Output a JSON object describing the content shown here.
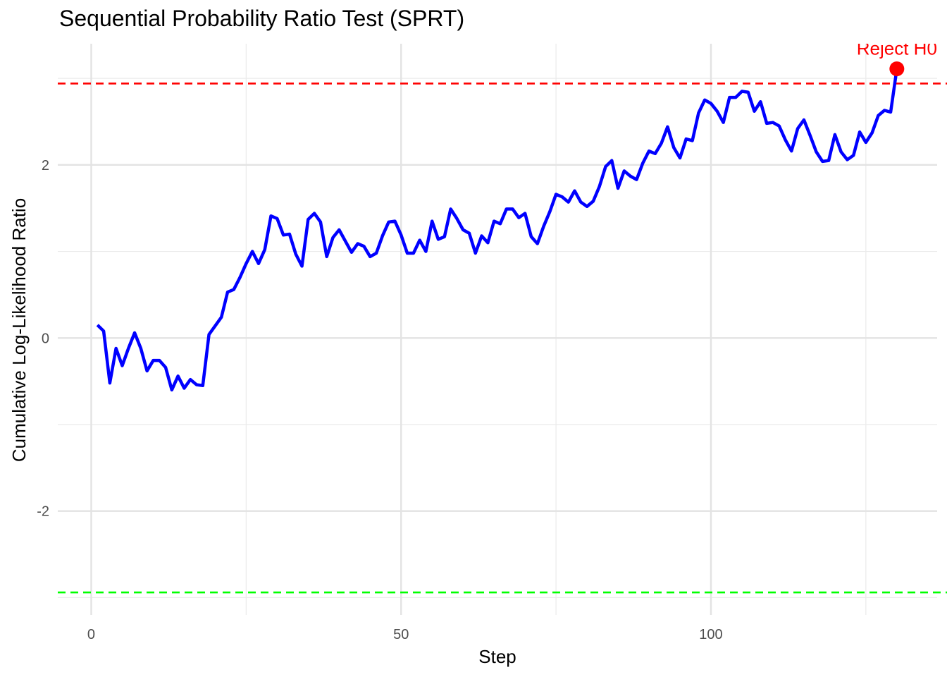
{
  "chart_data": {
    "type": "line",
    "title": "Sequential Probability Ratio Test (SPRT)",
    "xlabel": "Step",
    "ylabel": "Cumulative Log-Likelihood Ratio",
    "xlim": [
      -5.4,
      136.5
    ],
    "ylim": [
      -3.2,
      3.4
    ],
    "x_ticks": [
      0,
      50,
      100
    ],
    "x_tick_labels": [
      "0",
      "50",
      "100"
    ],
    "y_ticks": [
      -2,
      0,
      2
    ],
    "y_tick_labels": [
      "-2",
      "0",
      "2"
    ],
    "grid": true,
    "series": [
      {
        "color": "#0000ff",
        "x": [
          1,
          2,
          3,
          4,
          5,
          6,
          7,
          8,
          9,
          10,
          11,
          12,
          13,
          14,
          15,
          16,
          17,
          18,
          19,
          20,
          21,
          22,
          23,
          24,
          25,
          26,
          27,
          28,
          29,
          30,
          31,
          32,
          33,
          34,
          35,
          36,
          37,
          38,
          39,
          40,
          41,
          42,
          43,
          44,
          45,
          46,
          47,
          48,
          49,
          50,
          51,
          52,
          53,
          54,
          55,
          56,
          57,
          58,
          59,
          60,
          61,
          62,
          63,
          64,
          65,
          66,
          67,
          68,
          69,
          70,
          71,
          72,
          73,
          74,
          75,
          76,
          77,
          78,
          79,
          80,
          81,
          82,
          83,
          84,
          85,
          86,
          87,
          88,
          89,
          90,
          91,
          92,
          93,
          94,
          95,
          96,
          97,
          98,
          99,
          100,
          101,
          102,
          103,
          104,
          105,
          106,
          107,
          108,
          109,
          110,
          111,
          112,
          113,
          114,
          115,
          116,
          117,
          118,
          119,
          120,
          121,
          122,
          123,
          124,
          125,
          126,
          127,
          128,
          129,
          130
        ],
        "y": [
          0.15,
          0.08,
          -0.52,
          -0.12,
          -0.32,
          -0.12,
          0.06,
          -0.12,
          -0.38,
          -0.26,
          -0.26,
          -0.34,
          -0.6,
          -0.44,
          -0.58,
          -0.48,
          -0.54,
          -0.55,
          0.04,
          0.14,
          0.24,
          0.53,
          0.56,
          0.7,
          0.86,
          1.0,
          0.86,
          1.02,
          1.41,
          1.38,
          1.19,
          1.2,
          0.97,
          0.83,
          1.37,
          1.44,
          1.34,
          0.94,
          1.16,
          1.25,
          1.12,
          0.99,
          1.09,
          1.06,
          0.94,
          0.98,
          1.18,
          1.34,
          1.35,
          1.19,
          0.98,
          0.98,
          1.13,
          1.0,
          1.35,
          1.14,
          1.17,
          1.49,
          1.38,
          1.25,
          1.21,
          0.98,
          1.18,
          1.1,
          1.35,
          1.32,
          1.49,
          1.49,
          1.39,
          1.44,
          1.17,
          1.09,
          1.29,
          1.46,
          1.66,
          1.63,
          1.57,
          1.7,
          1.57,
          1.52,
          1.58,
          1.75,
          1.98,
          2.05,
          1.73,
          1.93,
          1.87,
          1.83,
          2.02,
          2.16,
          2.13,
          2.25,
          2.44,
          2.2,
          2.08,
          2.3,
          2.28,
          2.6,
          2.75,
          2.71,
          2.62,
          2.49,
          2.78,
          2.78,
          2.85,
          2.84,
          2.62,
          2.73,
          2.48,
          2.49,
          2.45,
          2.29,
          2.16,
          2.42,
          2.52,
          2.34,
          2.15,
          2.04,
          2.05,
          2.35,
          2.15,
          2.06,
          2.11,
          2.38,
          2.26,
          2.37,
          2.57,
          2.63,
          2.61,
          3.11
        ]
      }
    ],
    "upper_threshold": {
      "value": 2.94,
      "color": "#ff0000"
    },
    "lower_threshold": {
      "value": -2.94,
      "color": "#00ff00"
    },
    "annotation": {
      "text": "Reject H0",
      "x": 130,
      "y": 3.11,
      "color": "#ff0000"
    }
  }
}
